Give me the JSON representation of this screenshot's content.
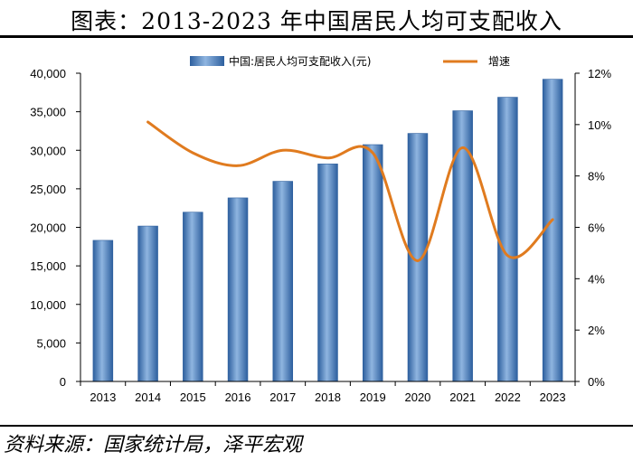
{
  "header": {
    "title": "图表：2013-2023 年中国居民人均可支配收入"
  },
  "footer": {
    "source": "资料来源：国家统计局，泽平宏观"
  },
  "colors": {
    "bar": "#4f86c6",
    "bar_dark": "#2d5f9e",
    "line": "#e07b1f"
  },
  "chart_data": {
    "type": "bar",
    "categories": [
      "2013",
      "2014",
      "2015",
      "2016",
      "2017",
      "2018",
      "2019",
      "2020",
      "2021",
      "2022",
      "2023"
    ],
    "series": [
      {
        "name": "中国:居民人均可支配收入(元)",
        "type": "bar",
        "axis": "left",
        "values": [
          18311,
          20167,
          21966,
          23821,
          25974,
          28228,
          30733,
          32189,
          35128,
          36883,
          39218
        ]
      },
      {
        "name": "增速",
        "type": "line",
        "axis": "right",
        "values": [
          null,
          10.1,
          8.9,
          8.4,
          9.0,
          8.7,
          8.9,
          4.7,
          9.1,
          4.9,
          6.3
        ]
      }
    ],
    "y_left": {
      "ylim": [
        0,
        40000
      ],
      "ticks": [
        "0",
        "5,000",
        "10,000",
        "15,000",
        "20,000",
        "25,000",
        "30,000",
        "35,000",
        "40,000"
      ]
    },
    "y_right": {
      "ylim": [
        0,
        12
      ],
      "ticks": [
        "0%",
        "2%",
        "4%",
        "6%",
        "8%",
        "10%",
        "12%"
      ]
    },
    "legend_position": "top-center"
  }
}
